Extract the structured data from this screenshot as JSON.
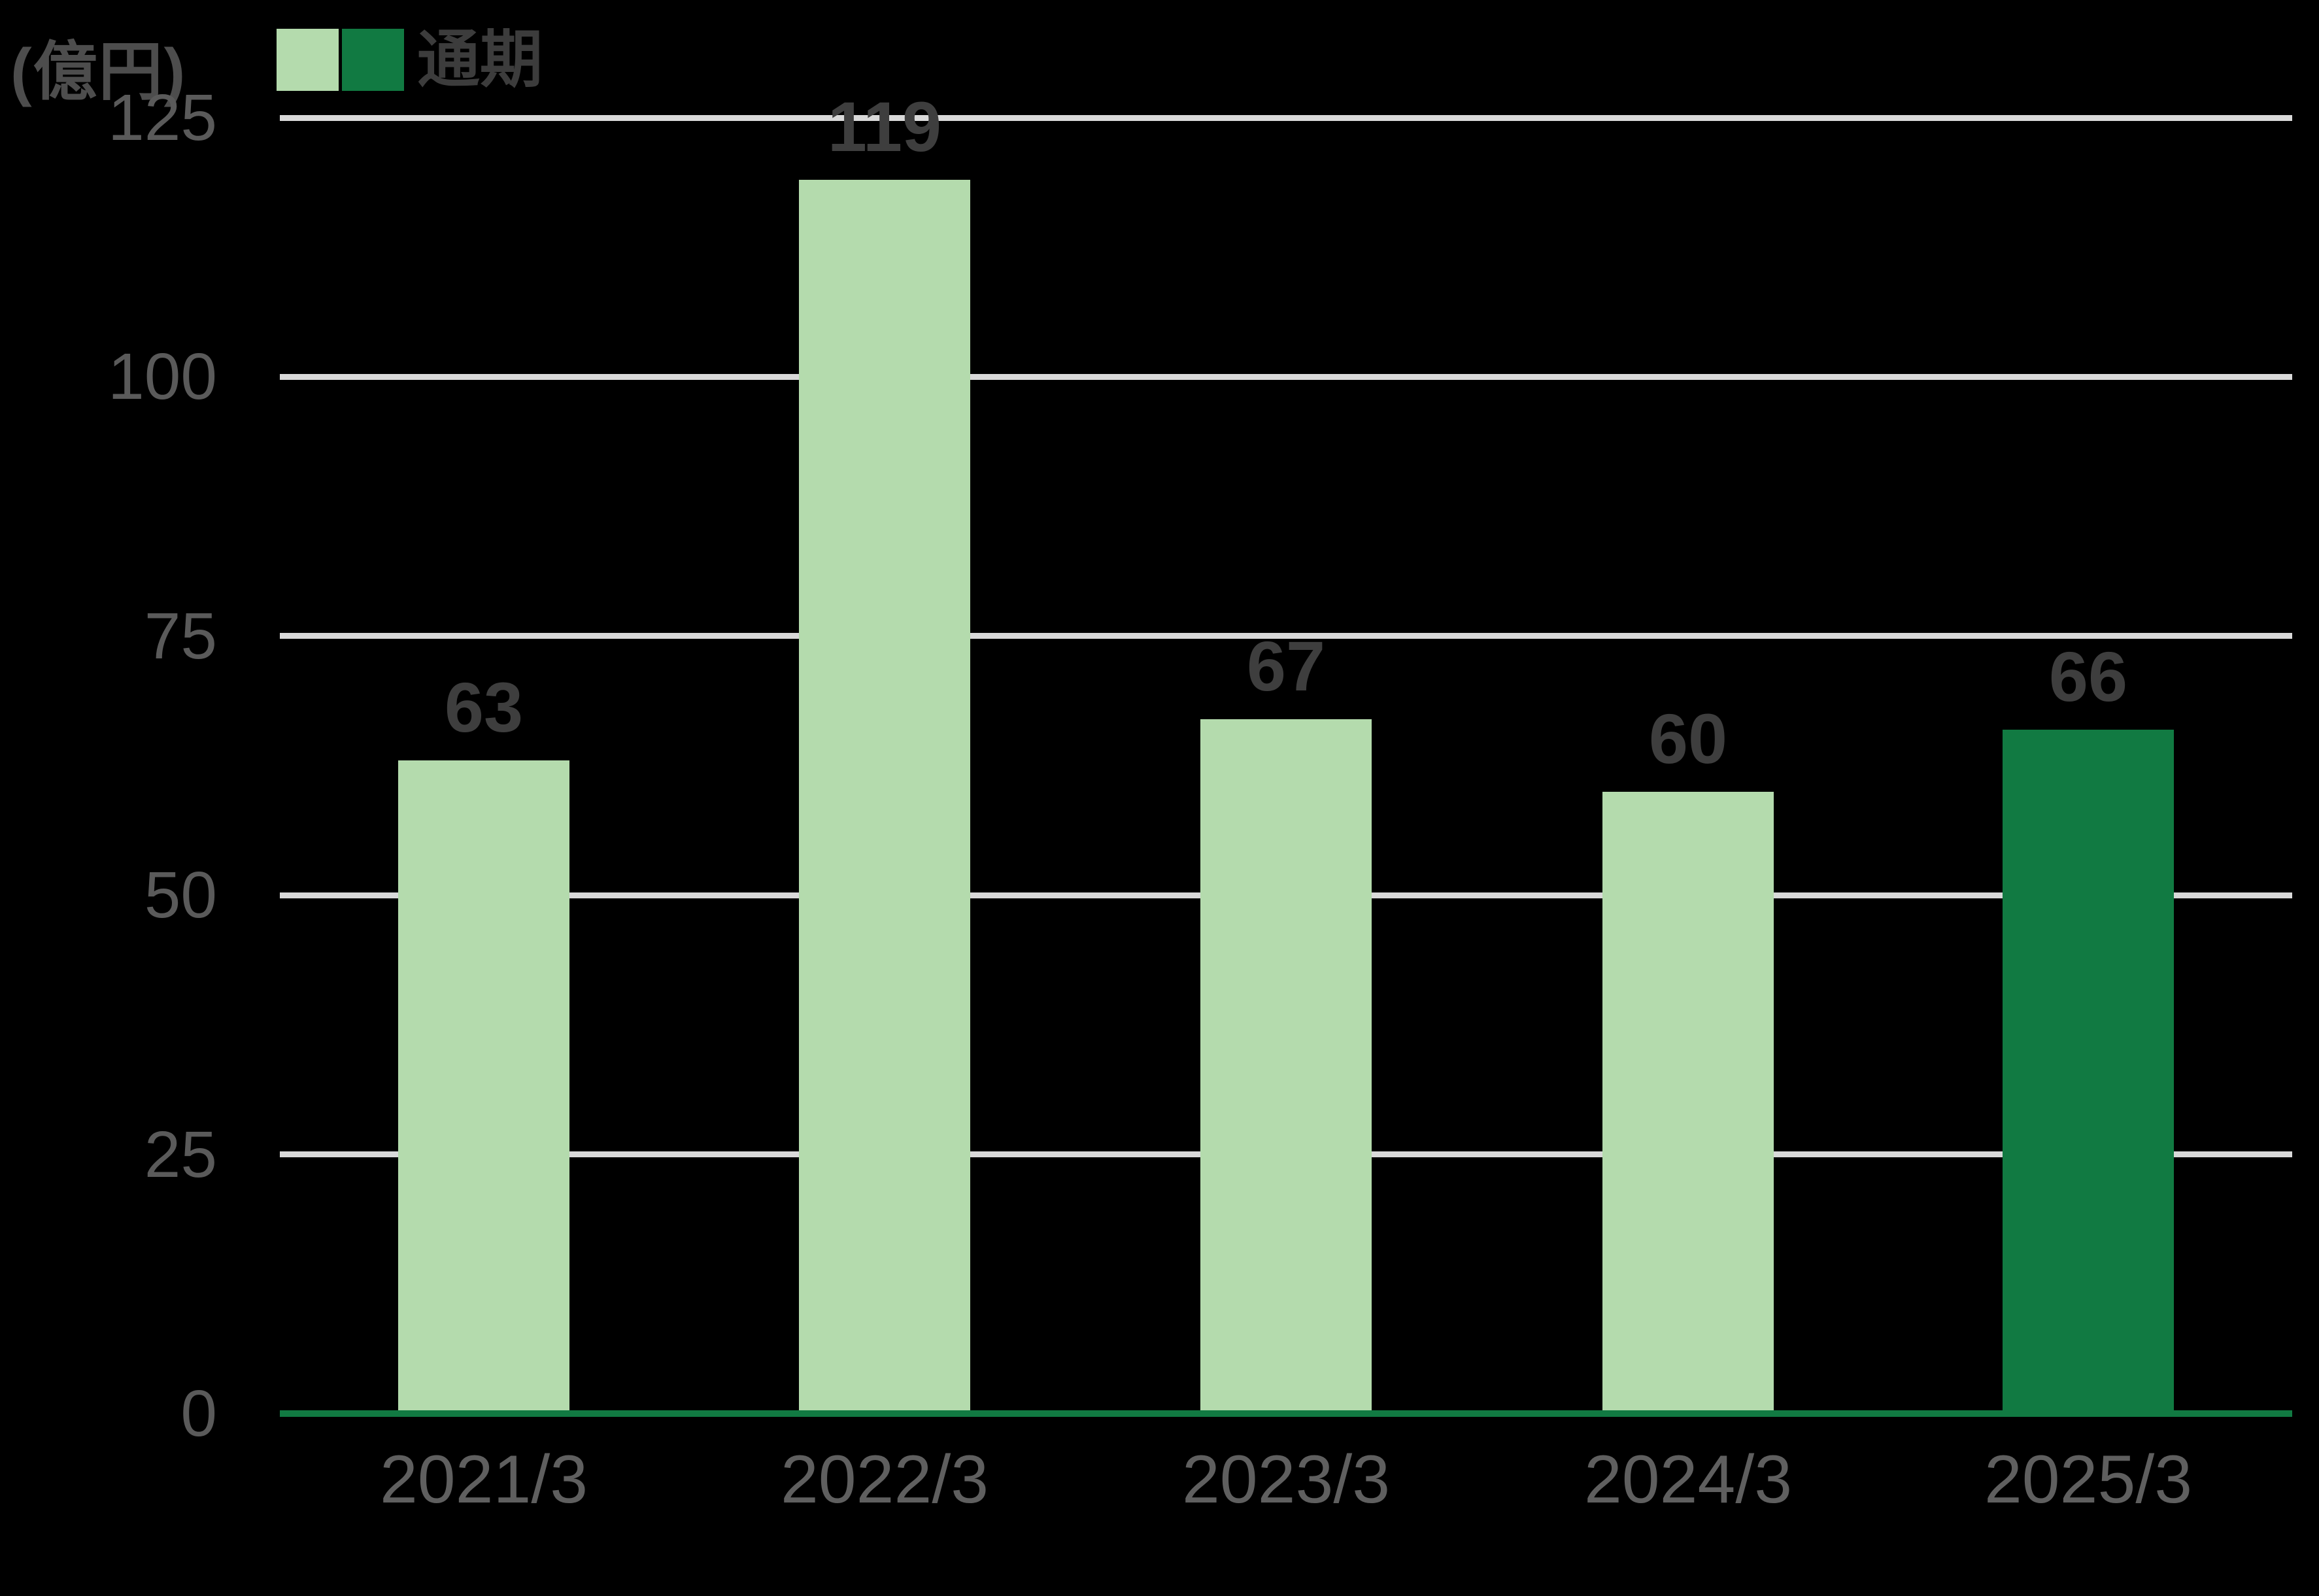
{
  "chart_data": {
    "type": "bar",
    "title": "",
    "unit_label": "(億円)",
    "categories": [
      "2021/3",
      "2022/3",
      "2023/3",
      "2024/3",
      "2025/3"
    ],
    "series": [
      {
        "name": "通期",
        "values": [
          63,
          119,
          67,
          60,
          66
        ]
      }
    ],
    "value_labels": [
      "63",
      "119",
      "67",
      "60",
      "66"
    ],
    "highlighted_category": "2025/3",
    "legend": [
      {
        "label": "通期",
        "swatch_colors": [
          "#B4DBAD",
          "#117A42"
        ]
      }
    ],
    "legend_position": "top-left",
    "xlabel": "",
    "ylabel": "(億円)",
    "ylim": [
      0,
      125
    ],
    "yticks": [
      0,
      25,
      50,
      75,
      100,
      125
    ],
    "grid": "horizontal",
    "colors": {
      "background": "#000000",
      "bar_default": "#B4DBAD",
      "bar_highlight": "#117A42",
      "gridline": "#D9D9D9",
      "axis_line": "#117A42",
      "unit_label_text": "#4D4D4D",
      "ytick_text": "#5A5A5A",
      "xtick_text": "#5F5F5F",
      "value_label_text": "#3E3E3E",
      "legend_text": "#3C3C3C"
    }
  }
}
